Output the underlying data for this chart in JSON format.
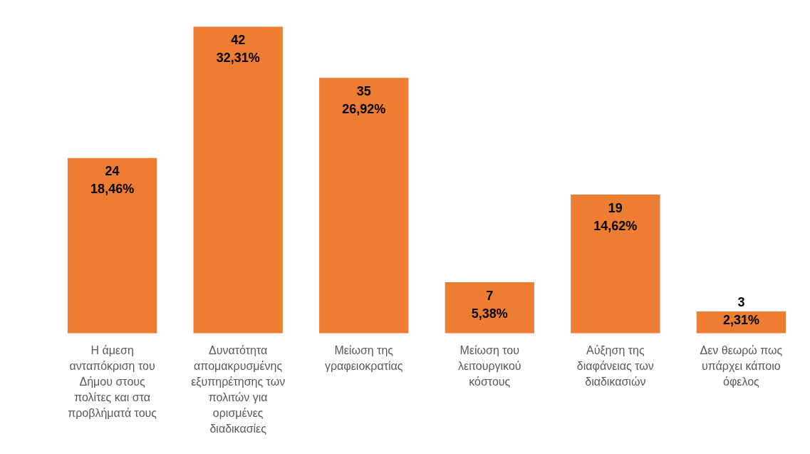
{
  "chart_data": {
    "type": "bar",
    "categories": [
      "Η άμεση ανταπόκριση του Δήμου στους πολίτες και στα προβλήματά τους",
      "Δυνατότητα απομακρυσμένης εξυπηρέτησης των πολιτών για ορισμένες διαδικασίες",
      "Μείωση της γραφειοκρατίας",
      "Μείωση του λειτουργικού κόστους",
      "Αύξηση της διαφάνειας των διαδικασιών",
      "Δεν θεωρώ πως υπάρχει κάποιο όφελος"
    ],
    "values": [
      24,
      42,
      35,
      7,
      19,
      3
    ],
    "color": "#ed7d31",
    "value_labels": [
      "24\n18,46%",
      "42\n32,31%",
      "35\n26,92%",
      "7\n5,38%",
      "19\n14,62%",
      "3\n2,31%"
    ],
    "grid": false
  }
}
